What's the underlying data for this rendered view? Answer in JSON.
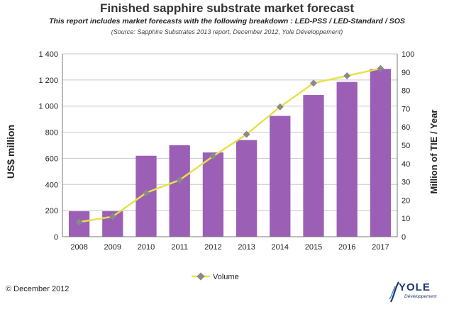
{
  "chart_data": {
    "type": "bar",
    "title": "Finished sapphire substrate market forecast",
    "subtitle": "This report includes market forecasts with the following breakdown : LED-PSS / LED-Standard / SOS",
    "source": "(Source: Sapphire Substrates 2013 report, December 2012, Yole Développement)",
    "categories": [
      "2008",
      "2009",
      "2010",
      "2011",
      "2012",
      "2013",
      "2014",
      "2015",
      "2016",
      "2017"
    ],
    "series": [
      {
        "axis": "left",
        "kind": "bar",
        "color": "#9b5fb5",
        "values": [
          195,
          195,
          620,
          700,
          645,
          740,
          925,
          1085,
          1185,
          1285
        ]
      },
      {
        "name": "Volume",
        "axis": "right",
        "kind": "line",
        "color": "#e8e04a",
        "marker_color": "#8a8a8a",
        "values": [
          8,
          11,
          24,
          31,
          44,
          56,
          71,
          84,
          88,
          92
        ]
      }
    ],
    "ylabel": "US$ million",
    "ylabel_right": "Million of TIE / Year",
    "ylim": [
      0,
      1400
    ],
    "ylim_right": [
      0,
      100
    ],
    "yticks": [
      "0",
      "200",
      "400",
      "600",
      "800",
      "1 000",
      "1 200",
      "1 400"
    ],
    "yticks_right": [
      "0",
      "10",
      "20",
      "30",
      "40",
      "50",
      "60",
      "70",
      "80",
      "90",
      "100"
    ],
    "grid": true,
    "legend": "bottom-center"
  },
  "footer": {
    "copyright": "© December 2012",
    "logo_text": "YOLE",
    "logo_sub": "Développement"
  }
}
